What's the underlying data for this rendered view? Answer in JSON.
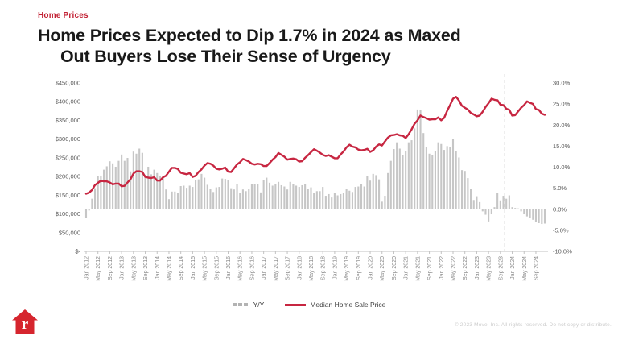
{
  "colors": {
    "accent_red": "#C72641",
    "eyebrow_red": "#C22033",
    "bar_gray": "#C6C6C6",
    "axis_label_gray": "#595959",
    "x_label_gray": "#8A8A8A",
    "axis_line_gray": "#C2C2C2",
    "divider_gray": "#8C8C8C",
    "logo_red": "#D6252E"
  },
  "header": {
    "eyebrow": "Home Prices",
    "title_line1": "Home Prices Expected to Dip 1.7% in 2024 as Maxed",
    "title_line2": "Out Buyers Lose Their Sense of Urgency"
  },
  "legend": {
    "yoy_label": "Y/Y",
    "price_label": "Median Home Sale Price"
  },
  "footer": {
    "copyright": "© 2023 Move, Inc. All rights reserved. Do not copy or distribute.",
    "logo_icon": "realtor-home-icon"
  },
  "chart_data": {
    "type": "combo",
    "x_interval": "monthly",
    "x_start": "Jan 2012",
    "x_end": "Dec 2024",
    "x_tick_every_n_months": 4,
    "x_tick_labels": [
      "Jan 2012",
      "May 2012",
      "Sep 2012",
      "Jan 2013",
      "May 2013",
      "Sep 2013",
      "Jan 2014",
      "May 2014",
      "Sep 2014",
      "Jan 2015",
      "May 2015",
      "Sep 2015",
      "Jan 2016",
      "May 2016",
      "Sep 2016",
      "Jan 2017",
      "May 2017",
      "Sep 2017",
      "Jan 2018",
      "May 2018",
      "Sep 2018",
      "Jan 2019",
      "May 2019",
      "Sep 2019",
      "Jan 2020",
      "May 2020",
      "Sep 2020",
      "Jan 2021",
      "May 2021",
      "Sep 2021",
      "Jan 2022",
      "May 2022",
      "Sep 2022",
      "Jan 2023",
      "May 2023",
      "Sep 2023",
      "Jan 2024",
      "May 2024",
      "Sep 2024"
    ],
    "left_axis": {
      "min": 0,
      "max": 450000,
      "tick_labels": [
        "$450,000",
        "$400,000",
        "$350,000",
        "$300,000",
        "$250,000",
        "$200,000",
        "$150,000",
        "$100,000",
        "$50,000",
        "$-"
      ]
    },
    "right_axis": {
      "min": -10,
      "max": 30,
      "tick_labels": [
        "30.0%",
        "25.0%",
        "20.0%",
        "15.0%",
        "10.0%",
        "5.0%",
        "0.0%",
        "-5.0%",
        "-10.0%"
      ]
    },
    "forecast_divider_after_index": 141,
    "grid": "off",
    "legend_position": "bottom-center",
    "series": [
      {
        "name": "Y/Y",
        "type": "bar",
        "axis": "right",
        "color": "#C6C6C6",
        "values": [
          -2.0,
          -0.3,
          2.5,
          5.0,
          7.9,
          8.0,
          9.4,
          10.2,
          11.4,
          10.9,
          10.1,
          11.5,
          13.0,
          11.5,
          12.2,
          9.0,
          13.7,
          13.2,
          14.4,
          13.4,
          8.2,
          10.1,
          8.3,
          9.4,
          8.6,
          8.0,
          7.6,
          4.7,
          2.4,
          4.2,
          4.2,
          3.8,
          5.5,
          5.6,
          5.1,
          5.6,
          5.3,
          6.9,
          7.1,
          8.4,
          7.5,
          5.8,
          4.9,
          4.1,
          5.2,
          5.3,
          7.3,
          7.2,
          7.0,
          5.0,
          4.7,
          5.9,
          3.9,
          4.7,
          4.3,
          4.8,
          5.9,
          5.9,
          5.9,
          4.0,
          7.0,
          7.5,
          6.3,
          5.6,
          5.9,
          6.5,
          5.7,
          5.4,
          4.7,
          6.5,
          6.0,
          5.6,
          5.3,
          5.7,
          5.9,
          4.9,
          5.2,
          3.8,
          4.3,
          4.3,
          5.3,
          3.2,
          3.6,
          2.8,
          3.8,
          3.3,
          3.6,
          3.9,
          4.9,
          4.4,
          4.1,
          5.3,
          5.4,
          5.9,
          5.4,
          7.8,
          6.8,
          8.4,
          8.1,
          7.1,
          1.8,
          3.2,
          8.6,
          11.5,
          14.3,
          15.9,
          14.4,
          12.8,
          13.9,
          15.9,
          16.4,
          19.2,
          23.7,
          23.5,
          18.1,
          14.8,
          13.2,
          12.8,
          13.9,
          15.9,
          15.5,
          14.1,
          15.0,
          14.7,
          16.6,
          13.8,
          12.3,
          9.3,
          9.1,
          7.4,
          4.8,
          2.2,
          3.1,
          1.7,
          -0.5,
          -1.3,
          -2.9,
          -1.2,
          0.5,
          3.9,
          2.1,
          3.2,
          2.5,
          3.3,
          0.5,
          0.3,
          0.2,
          -0.5,
          -1.2,
          -1.7,
          -2.0,
          -2.5,
          -3.0,
          -3.3,
          -3.5,
          -3.4
        ]
      },
      {
        "name": "Median Home Sale Price",
        "type": "line",
        "axis": "left",
        "color": "#C72641",
        "values": [
          154000,
          157000,
          164000,
          177000,
          183000,
          189000,
          187000,
          187000,
          184000,
          179000,
          181000,
          181000,
          174000,
          175000,
          184000,
          193000,
          208000,
          214000,
          214000,
          212000,
          199000,
          197000,
          196000,
          198000,
          189000,
          189000,
          198000,
          202000,
          213000,
          223000,
          223000,
          220000,
          210000,
          208000,
          206000,
          209000,
          199000,
          202000,
          212000,
          219000,
          229000,
          236000,
          234000,
          229000,
          221000,
          219000,
          221000,
          224000,
          213000,
          212000,
          222000,
          232000,
          238000,
          247000,
          244000,
          240000,
          234000,
          232000,
          234000,
          233000,
          228000,
          228000,
          236000,
          245000,
          252000,
          263000,
          258000,
          253000,
          245000,
          247000,
          248000,
          246000,
          240000,
          241000,
          250000,
          257000,
          265000,
          273000,
          269000,
          264000,
          258000,
          255000,
          257000,
          253000,
          249000,
          249000,
          259000,
          267000,
          278000,
          285000,
          280000,
          278000,
          272000,
          270000,
          271000,
          274000,
          266000,
          270000,
          280000,
          286000,
          283000,
          294000,
          304000,
          310000,
          311000,
          313000,
          310000,
          309000,
          303000,
          313000,
          326000,
          341000,
          350000,
          363000,
          359000,
          356000,
          352000,
          353000,
          353000,
          358000,
          350000,
          357000,
          375000,
          391000,
          408000,
          413000,
          403000,
          389000,
          384000,
          379000,
          370000,
          366000,
          361000,
          363000,
          373000,
          386000,
          396000,
          408000,
          405000,
          404000,
          392000,
          391000,
          381000,
          378000,
          363000,
          364000,
          374000,
          384000,
          391000,
          401000,
          397000,
          394000,
          380000,
          378000,
          368000,
          365000
        ]
      }
    ]
  }
}
